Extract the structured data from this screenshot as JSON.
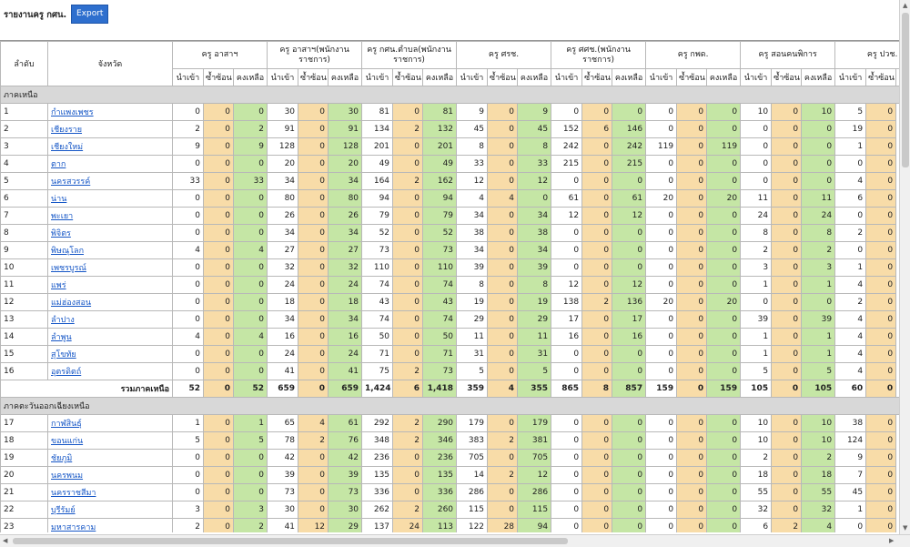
{
  "title": "รายงานครู กศน.",
  "export_label": "Export",
  "header": {
    "seq": "ลำดับ",
    "province": "จังหวัด",
    "groups": [
      "ครู อาสาฯ",
      "ครู อาสาฯ(พนักงานราชการ)",
      "ครู กศน.ตำบล(พนักงานราชการ)",
      "ครู ศรช.",
      "ครู ศศช.(พนักงานราชการ)",
      "ครู กพด.",
      "ครู สอนคนพิการ",
      "ครู ปวช."
    ],
    "sub": [
      "นำเข้า",
      "ซ้ำซ้อน",
      "คงเหลือ"
    ]
  },
  "regions": [
    {
      "name": "ภาคเหนือ",
      "rows": [
        {
          "no": "1",
          "province": "กำแพงเพชร",
          "v": [
            "0",
            "0",
            "0",
            "30",
            "0",
            "30",
            "81",
            "0",
            "81",
            "9",
            "0",
            "9",
            "0",
            "0",
            "0",
            "0",
            "0",
            "0",
            "10",
            "0",
            "10",
            "5",
            "0"
          ]
        },
        {
          "no": "2",
          "province": "เชียงราย",
          "v": [
            "2",
            "0",
            "2",
            "91",
            "0",
            "91",
            "134",
            "2",
            "132",
            "45",
            "0",
            "45",
            "152",
            "6",
            "146",
            "0",
            "0",
            "0",
            "0",
            "0",
            "0",
            "19",
            "0"
          ]
        },
        {
          "no": "3",
          "province": "เชียงใหม่",
          "v": [
            "9",
            "0",
            "9",
            "128",
            "0",
            "128",
            "201",
            "0",
            "201",
            "8",
            "0",
            "8",
            "242",
            "0",
            "242",
            "119",
            "0",
            "119",
            "0",
            "0",
            "0",
            "1",
            "0"
          ]
        },
        {
          "no": "4",
          "province": "ตาก",
          "v": [
            "0",
            "0",
            "0",
            "20",
            "0",
            "20",
            "49",
            "0",
            "49",
            "33",
            "0",
            "33",
            "215",
            "0",
            "215",
            "0",
            "0",
            "0",
            "0",
            "0",
            "0",
            "0",
            "0"
          ]
        },
        {
          "no": "5",
          "province": "นครสวรรค์",
          "v": [
            "33",
            "0",
            "33",
            "34",
            "0",
            "34",
            "164",
            "2",
            "162",
            "12",
            "0",
            "12",
            "0",
            "0",
            "0",
            "0",
            "0",
            "0",
            "0",
            "0",
            "0",
            "4",
            "0"
          ]
        },
        {
          "no": "6",
          "province": "น่าน",
          "v": [
            "0",
            "0",
            "0",
            "80",
            "0",
            "80",
            "94",
            "0",
            "94",
            "4",
            "4",
            "0",
            "61",
            "0",
            "61",
            "20",
            "0",
            "20",
            "11",
            "0",
            "11",
            "6",
            "0"
          ]
        },
        {
          "no": "7",
          "province": "พะเยา",
          "v": [
            "0",
            "0",
            "0",
            "26",
            "0",
            "26",
            "79",
            "0",
            "79",
            "34",
            "0",
            "34",
            "12",
            "0",
            "12",
            "0",
            "0",
            "0",
            "24",
            "0",
            "24",
            "0",
            "0"
          ]
        },
        {
          "no": "8",
          "province": "พิจิตร",
          "v": [
            "0",
            "0",
            "0",
            "34",
            "0",
            "34",
            "52",
            "0",
            "52",
            "38",
            "0",
            "38",
            "0",
            "0",
            "0",
            "0",
            "0",
            "0",
            "8",
            "0",
            "8",
            "2",
            "0"
          ]
        },
        {
          "no": "9",
          "province": "พิษณุโลก",
          "v": [
            "4",
            "0",
            "4",
            "27",
            "0",
            "27",
            "73",
            "0",
            "73",
            "34",
            "0",
            "34",
            "0",
            "0",
            "0",
            "0",
            "0",
            "0",
            "2",
            "0",
            "2",
            "0",
            "0"
          ]
        },
        {
          "no": "10",
          "province": "เพชรบูรณ์",
          "v": [
            "0",
            "0",
            "0",
            "32",
            "0",
            "32",
            "110",
            "0",
            "110",
            "39",
            "0",
            "39",
            "0",
            "0",
            "0",
            "0",
            "0",
            "0",
            "3",
            "0",
            "3",
            "1",
            "0"
          ]
        },
        {
          "no": "11",
          "province": "แพร่",
          "v": [
            "0",
            "0",
            "0",
            "24",
            "0",
            "24",
            "74",
            "0",
            "74",
            "8",
            "0",
            "8",
            "12",
            "0",
            "12",
            "0",
            "0",
            "0",
            "1",
            "0",
            "1",
            "4",
            "0"
          ]
        },
        {
          "no": "12",
          "province": "แม่ฮ่องสอน",
          "v": [
            "0",
            "0",
            "0",
            "18",
            "0",
            "18",
            "43",
            "0",
            "43",
            "19",
            "0",
            "19",
            "138",
            "2",
            "136",
            "20",
            "0",
            "20",
            "0",
            "0",
            "0",
            "2",
            "0"
          ]
        },
        {
          "no": "13",
          "province": "ลำปาง",
          "v": [
            "0",
            "0",
            "0",
            "34",
            "0",
            "34",
            "74",
            "0",
            "74",
            "29",
            "0",
            "29",
            "17",
            "0",
            "17",
            "0",
            "0",
            "0",
            "39",
            "0",
            "39",
            "4",
            "0"
          ]
        },
        {
          "no": "14",
          "province": "ลำพูน",
          "v": [
            "4",
            "0",
            "4",
            "16",
            "0",
            "16",
            "50",
            "0",
            "50",
            "11",
            "0",
            "11",
            "16",
            "0",
            "16",
            "0",
            "0",
            "0",
            "1",
            "0",
            "1",
            "4",
            "0"
          ]
        },
        {
          "no": "15",
          "province": "สุโขทัย",
          "v": [
            "0",
            "0",
            "0",
            "24",
            "0",
            "24",
            "71",
            "0",
            "71",
            "31",
            "0",
            "31",
            "0",
            "0",
            "0",
            "0",
            "0",
            "0",
            "1",
            "0",
            "1",
            "4",
            "0"
          ]
        },
        {
          "no": "16",
          "province": "อุตรดิตถ์",
          "v": [
            "0",
            "0",
            "0",
            "41",
            "0",
            "41",
            "75",
            "2",
            "73",
            "5",
            "0",
            "5",
            "0",
            "0",
            "0",
            "0",
            "0",
            "0",
            "5",
            "0",
            "5",
            "4",
            "0"
          ]
        }
      ],
      "total_label": "รวมภาคเหนือ",
      "total": [
        "52",
        "0",
        "52",
        "659",
        "0",
        "659",
        "1,424",
        "6",
        "1,418",
        "359",
        "4",
        "355",
        "865",
        "8",
        "857",
        "159",
        "0",
        "159",
        "105",
        "0",
        "105",
        "60",
        "0"
      ]
    },
    {
      "name": "ภาคตะวันออกเฉียงเหนือ",
      "rows": [
        {
          "no": "17",
          "province": "กาฬสินธุ์",
          "v": [
            "1",
            "0",
            "1",
            "65",
            "4",
            "61",
            "292",
            "2",
            "290",
            "179",
            "0",
            "179",
            "0",
            "0",
            "0",
            "0",
            "0",
            "0",
            "10",
            "0",
            "10",
            "38",
            "0"
          ]
        },
        {
          "no": "18",
          "province": "ขอนแก่น",
          "v": [
            "5",
            "0",
            "5",
            "78",
            "2",
            "76",
            "348",
            "2",
            "346",
            "383",
            "2",
            "381",
            "0",
            "0",
            "0",
            "0",
            "0",
            "0",
            "10",
            "0",
            "10",
            "124",
            "0"
          ]
        },
        {
          "no": "19",
          "province": "ชัยภูมิ",
          "v": [
            "0",
            "0",
            "0",
            "42",
            "0",
            "42",
            "236",
            "0",
            "236",
            "705",
            "0",
            "705",
            "0",
            "0",
            "0",
            "0",
            "0",
            "0",
            "2",
            "0",
            "2",
            "9",
            "0"
          ]
        },
        {
          "no": "20",
          "province": "นครพนม",
          "v": [
            "0",
            "0",
            "0",
            "39",
            "0",
            "39",
            "135",
            "0",
            "135",
            "14",
            "2",
            "12",
            "0",
            "0",
            "0",
            "0",
            "0",
            "0",
            "18",
            "0",
            "18",
            "7",
            "0"
          ]
        },
        {
          "no": "21",
          "province": "นครราชสีมา",
          "v": [
            "0",
            "0",
            "0",
            "73",
            "0",
            "73",
            "336",
            "0",
            "336",
            "286",
            "0",
            "286",
            "0",
            "0",
            "0",
            "0",
            "0",
            "0",
            "55",
            "0",
            "55",
            "45",
            "0"
          ]
        },
        {
          "no": "22",
          "province": "บุรีรัมย์",
          "v": [
            "3",
            "0",
            "3",
            "30",
            "0",
            "30",
            "262",
            "2",
            "260",
            "115",
            "0",
            "115",
            "0",
            "0",
            "0",
            "0",
            "0",
            "0",
            "32",
            "0",
            "32",
            "1",
            "0"
          ]
        },
        {
          "no": "23",
          "province": "มหาสารคาม",
          "v": [
            "2",
            "0",
            "2",
            "41",
            "12",
            "29",
            "137",
            "24",
            "113",
            "122",
            "28",
            "94",
            "0",
            "0",
            "0",
            "0",
            "0",
            "0",
            "6",
            "2",
            "4",
            "0",
            "0"
          ]
        }
      ]
    }
  ]
}
